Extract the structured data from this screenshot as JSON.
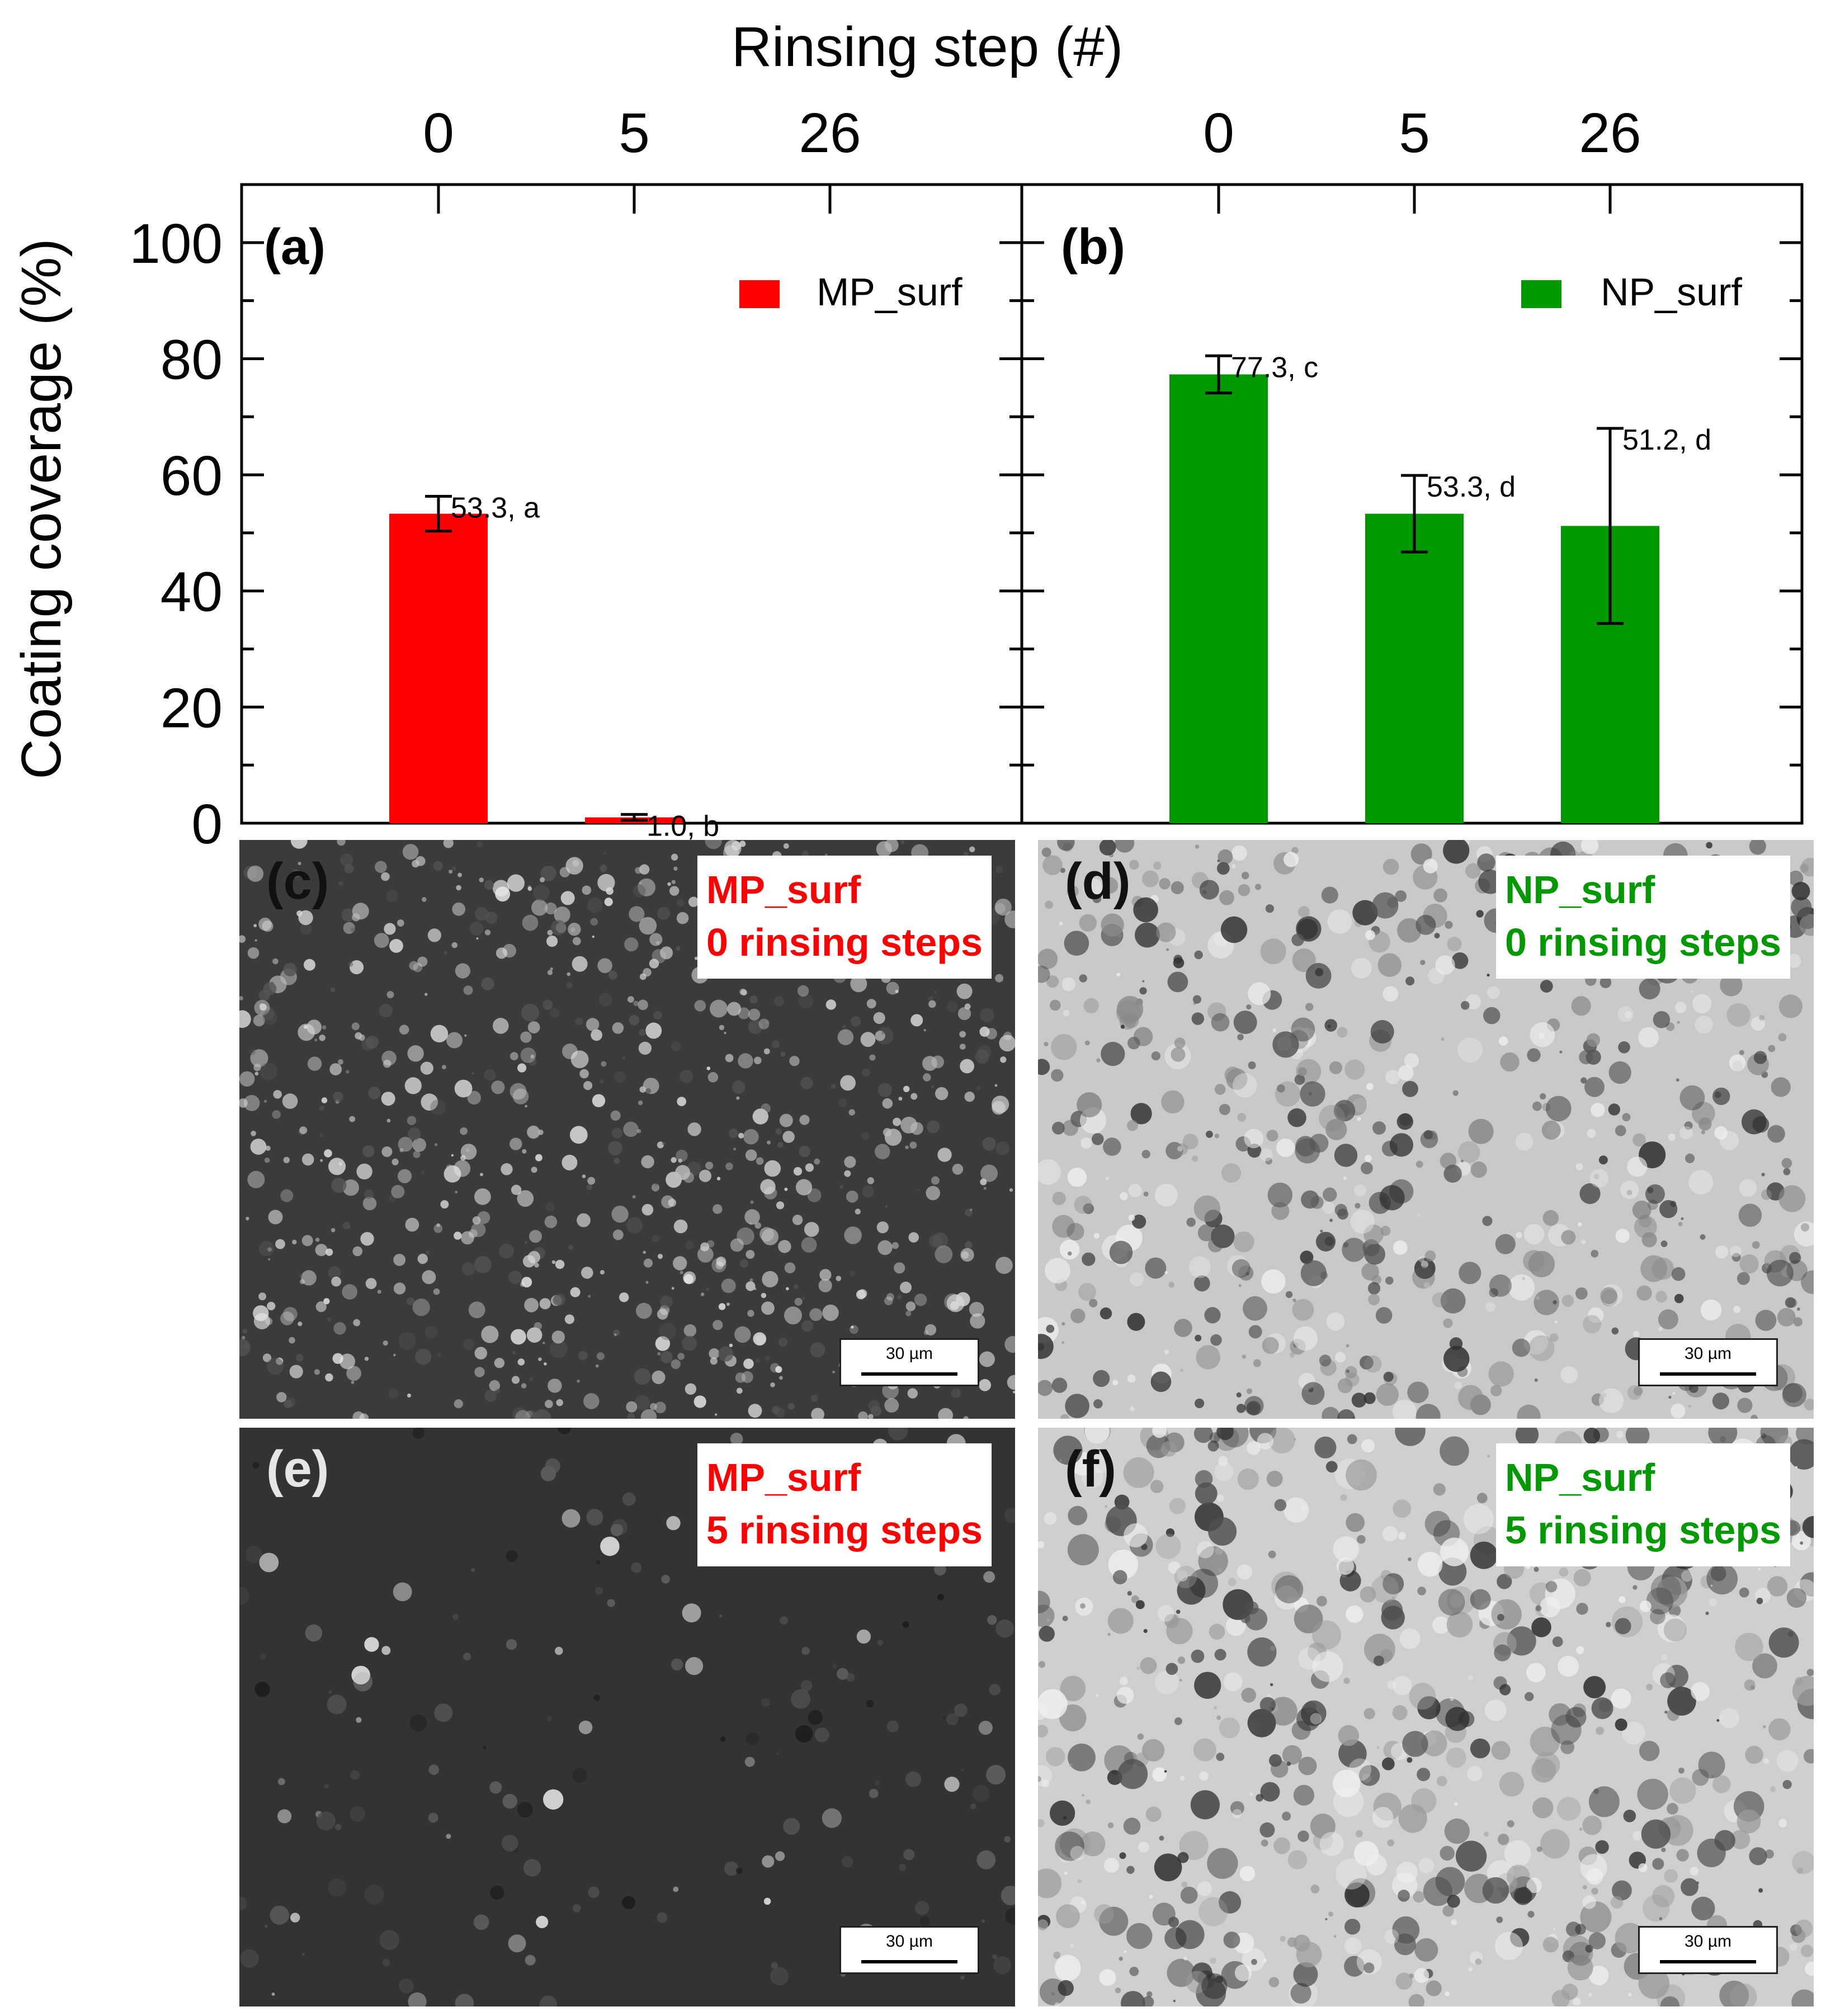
{
  "chart_data": [
    {
      "panel_label": "(a)",
      "type": "bar",
      "categories": [
        "0",
        "5",
        "26"
      ],
      "series": [
        {
          "name": "MP_surf",
          "color": "#ff0000",
          "values": [
            53.3,
            1.0,
            null
          ],
          "errors": [
            3.0,
            0.5,
            null
          ],
          "data_labels": [
            "53.3, a",
            "1.0, b",
            ""
          ]
        }
      ],
      "ylim": [
        0,
        110
      ],
      "yticks": [
        "0",
        "20",
        "40",
        "60",
        "80",
        "100"
      ],
      "legend_position": "top-right"
    },
    {
      "panel_label": "(b)",
      "type": "bar",
      "categories": [
        "0",
        "5",
        "26"
      ],
      "series": [
        {
          "name": "NP_surf",
          "color": "#009900",
          "values": [
            77.3,
            53.3,
            51.2
          ],
          "errors": [
            3.2,
            6.6,
            16.8
          ],
          "data_labels": [
            "77.3, c",
            "53.3, d",
            "51.2, d"
          ]
        }
      ],
      "ylim": [
        0,
        110
      ],
      "legend_position": "top-right"
    }
  ],
  "axes": {
    "top_xlabel": "Rinsing step (#)",
    "ylabel": "Coating coverage (%)"
  },
  "sem_panels": [
    {
      "label": "(c)",
      "line1": "MP_surf",
      "line2": "0 rinsing steps",
      "color": "#ff0000",
      "scale": "30 µm"
    },
    {
      "label": "(d)",
      "line1": "NP_surf",
      "line2": "0 rinsing steps",
      "color": "#009900",
      "scale": "30 µm"
    },
    {
      "label": "(e)",
      "line1": "MP_surf",
      "line2": "5 rinsing steps",
      "color": "#ff0000",
      "scale": "30 µm"
    },
    {
      "label": "(f)",
      "line1": "NP_surf",
      "line2": "5 rinsing steps",
      "color": "#009900",
      "scale": "30 µm"
    }
  ]
}
